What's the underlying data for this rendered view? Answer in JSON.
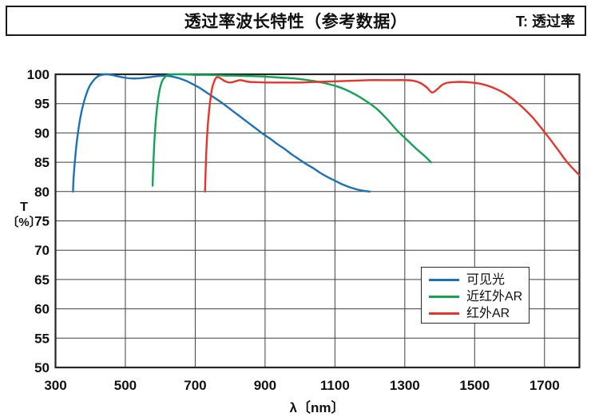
{
  "header": {
    "title": "透过率波长特性（参考数据）",
    "note": "T: 透过率"
  },
  "axis": {
    "y_label_symbol": "T",
    "y_label_unit": "〔%〕",
    "x_label": "λ〔nm〕"
  },
  "chart_data": {
    "type": "line",
    "title": "透过率波长特性（参考数据）",
    "xlabel": "λ〔nm〕",
    "ylabel": "T〔%〕",
    "xlim": [
      300,
      1800
    ],
    "ylim": [
      50,
      100
    ],
    "xticks": [
      300,
      500,
      700,
      900,
      1100,
      1300,
      1500,
      1700
    ],
    "yticks": [
      50,
      55,
      60,
      65,
      70,
      75,
      80,
      85,
      90,
      95,
      100
    ],
    "grid": true,
    "legend_position": "inside lower right",
    "series": [
      {
        "key": "visible-light",
        "name": "可见光",
        "color": "#1b72b8",
        "points": [
          [
            350,
            80
          ],
          [
            352,
            82.5
          ],
          [
            356,
            85.5
          ],
          [
            361,
            88.5
          ],
          [
            368,
            91.5
          ],
          [
            376,
            94
          ],
          [
            386,
            96.2
          ],
          [
            396,
            97.8
          ],
          [
            408,
            98.9
          ],
          [
            420,
            99.6
          ],
          [
            432,
            99.9
          ],
          [
            445,
            100
          ],
          [
            460,
            99.9
          ],
          [
            475,
            99.7
          ],
          [
            495,
            99.45
          ],
          [
            515,
            99.3
          ],
          [
            535,
            99.3
          ],
          [
            555,
            99.4
          ],
          [
            575,
            99.55
          ],
          [
            595,
            99.7
          ],
          [
            615,
            99.75
          ],
          [
            635,
            99.6
          ],
          [
            655,
            99.3
          ],
          [
            675,
            98.85
          ],
          [
            695,
            98.25
          ],
          [
            715,
            97.6
          ],
          [
            735,
            96.8
          ],
          [
            755,
            96
          ],
          [
            775,
            95.2
          ],
          [
            795,
            94.3
          ],
          [
            815,
            93.4
          ],
          [
            835,
            92.5
          ],
          [
            855,
            91.6
          ],
          [
            875,
            90.7
          ],
          [
            895,
            89.8
          ],
          [
            915,
            89
          ],
          [
            935,
            88.1
          ],
          [
            955,
            87.3
          ],
          [
            975,
            86.4
          ],
          [
            995,
            85.6
          ],
          [
            1015,
            84.8
          ],
          [
            1035,
            84.1
          ],
          [
            1055,
            83.3
          ],
          [
            1075,
            82.6
          ],
          [
            1095,
            82
          ],
          [
            1115,
            81.4
          ],
          [
            1135,
            80.9
          ],
          [
            1155,
            80.5
          ],
          [
            1175,
            80.2
          ],
          [
            1200,
            80
          ]
        ]
      },
      {
        "key": "near-ir-ar",
        "name": "近红外AR",
        "color": "#13a453",
        "points": [
          [
            578,
            81
          ],
          [
            580,
            84.5
          ],
          [
            583,
            88.5
          ],
          [
            587,
            92
          ],
          [
            592,
            95
          ],
          [
            598,
            97.3
          ],
          [
            605,
            98.8
          ],
          [
            613,
            99.5
          ],
          [
            622,
            99.9
          ],
          [
            640,
            100
          ],
          [
            670,
            100
          ],
          [
            700,
            99.9
          ],
          [
            740,
            99.9
          ],
          [
            780,
            99.8
          ],
          [
            820,
            99.75
          ],
          [
            860,
            99.7
          ],
          [
            900,
            99.6
          ],
          [
            940,
            99.45
          ],
          [
            980,
            99.3
          ],
          [
            1010,
            99.1
          ],
          [
            1040,
            98.85
          ],
          [
            1070,
            98.5
          ],
          [
            1100,
            98.05
          ],
          [
            1130,
            97.4
          ],
          [
            1160,
            96.5
          ],
          [
            1190,
            95.4
          ],
          [
            1220,
            94.1
          ],
          [
            1250,
            92.3
          ],
          [
            1280,
            90.3
          ],
          [
            1310,
            88.6
          ],
          [
            1335,
            87.2
          ],
          [
            1358,
            86
          ],
          [
            1375,
            85
          ]
        ]
      },
      {
        "key": "ir-ar",
        "name": "红外AR",
        "color": "#e6352c",
        "points": [
          [
            728,
            80
          ],
          [
            730,
            84
          ],
          [
            733,
            88.5
          ],
          [
            737,
            92
          ],
          [
            742,
            95
          ],
          [
            748,
            97.5
          ],
          [
            755,
            98.9
          ],
          [
            762,
            99.5
          ],
          [
            770,
            99.4
          ],
          [
            780,
            99
          ],
          [
            790,
            98.7
          ],
          [
            802,
            98.6
          ],
          [
            815,
            98.8
          ],
          [
            828,
            99
          ],
          [
            842,
            98.85
          ],
          [
            855,
            98.7
          ],
          [
            880,
            98.65
          ],
          [
            910,
            98.6
          ],
          [
            950,
            98.6
          ],
          [
            1000,
            98.6
          ],
          [
            1050,
            98.7
          ],
          [
            1100,
            98.8
          ],
          [
            1150,
            98.9
          ],
          [
            1200,
            99
          ],
          [
            1250,
            99
          ],
          [
            1300,
            99
          ],
          [
            1325,
            98.9
          ],
          [
            1345,
            98.5
          ],
          [
            1362,
            97.8
          ],
          [
            1378,
            96.9
          ],
          [
            1392,
            97.4
          ],
          [
            1405,
            98.1
          ],
          [
            1418,
            98.5
          ],
          [
            1435,
            98.65
          ],
          [
            1460,
            98.7
          ],
          [
            1490,
            98.6
          ],
          [
            1515,
            98.4
          ],
          [
            1540,
            98
          ],
          [
            1565,
            97.4
          ],
          [
            1590,
            96.6
          ],
          [
            1615,
            95.5
          ],
          [
            1640,
            94.2
          ],
          [
            1665,
            92.7
          ],
          [
            1690,
            90.9
          ],
          [
            1715,
            89
          ],
          [
            1740,
            87
          ],
          [
            1765,
            85
          ],
          [
            1790,
            83.4
          ],
          [
            1800,
            82.8
          ]
        ]
      }
    ]
  }
}
